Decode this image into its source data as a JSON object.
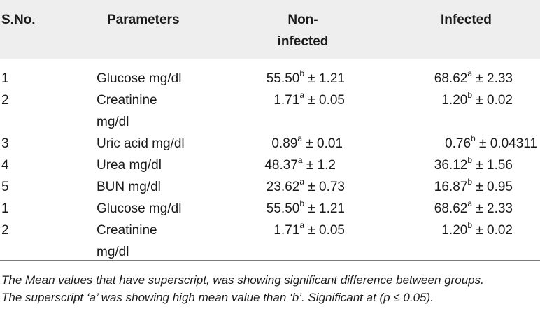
{
  "table": {
    "headers": {
      "sno": "S.No.",
      "parameters": "Parameters",
      "noninfected_line1": "Non-",
      "noninfected_line2": "infected",
      "infected": "Infected"
    },
    "rows": [
      {
        "sno": "1",
        "param": "Glucose mg/dl",
        "param2": "",
        "ni_val": "55.50",
        "ni_sup": "b",
        "ni_err": " ± 1.21",
        "in_val": "68.62",
        "in_sup": "a",
        "in_err": " ± 2.33"
      },
      {
        "sno": "2",
        "param": "Creatinine",
        "param2": "mg/dl",
        "ni_val": "1.71",
        "ni_sup": "a",
        "ni_err": " ± 0.05",
        "in_val": "1.20",
        "in_sup": "b",
        "in_err": " ± 0.02"
      },
      {
        "sno": "3",
        "param": "Uric acid mg/dl",
        "param2": "",
        "ni_val": "0.89",
        "ni_sup": "a",
        "ni_err": " ± 0.01",
        "in_val": "0.76",
        "in_sup": "b",
        "in_err": " ± 0.04311"
      },
      {
        "sno": "4",
        "param": "Urea mg/dl",
        "param2": "",
        "ni_val": "48.37",
        "ni_sup": "a",
        "ni_err": " ± 1.2",
        "in_val": "36.12",
        "in_sup": "b",
        "in_err": " ± 1.56"
      },
      {
        "sno": "5",
        "param": "BUN mg/dl",
        "param2": "",
        "ni_val": "23.62",
        "ni_sup": "a",
        "ni_err": " ± 0.73",
        "in_val": "16.87",
        "in_sup": "b",
        "in_err": " ± 0.95"
      },
      {
        "sno": "1",
        "param": "Glucose mg/dl",
        "param2": "",
        "ni_val": "55.50",
        "ni_sup": "b",
        "ni_err": " ± 1.21",
        "in_val": "68.62",
        "in_sup": "a",
        "in_err": " ± 2.33"
      },
      {
        "sno": "2",
        "param": "Creatinine",
        "param2": "mg/dl",
        "ni_val": "1.71",
        "ni_sup": "a",
        "ni_err": " ± 0.05",
        "in_val": "1.20",
        "in_sup": "b",
        "in_err": " ± 0.02"
      }
    ]
  },
  "footnote": {
    "line1": "The Mean values that have superscript, was showing significant difference between groups.",
    "line2": "The superscript ‘a’ was showing high mean value than ‘b’. Significant at (p ≤ 0.05)."
  }
}
